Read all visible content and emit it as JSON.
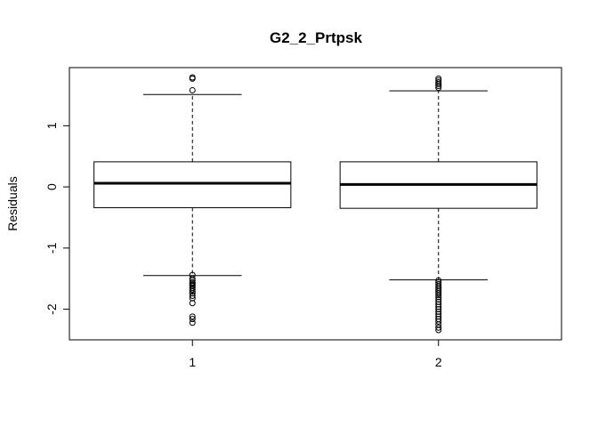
{
  "chart_data": {
    "type": "boxplot",
    "title": "G2_2_Prtpsk",
    "xlabel": "",
    "ylabel": "Residuals",
    "categories": [
      "1",
      "2"
    ],
    "ylim": [
      -2.5,
      1.95
    ],
    "yticks": [
      -2,
      -1,
      0,
      1
    ],
    "ytick_labels": [
      "-2",
      "-1",
      "0",
      "1"
    ],
    "grid": false,
    "boxes": [
      {
        "category": "1",
        "whisker_low": -1.45,
        "q1": -0.34,
        "median": 0.06,
        "q3": 0.41,
        "whisker_high": 1.51,
        "outliers": [
          1.79,
          1.77,
          1.58,
          -1.44,
          -1.5,
          -1.53,
          -1.56,
          -1.58,
          -1.6,
          -1.62,
          -1.65,
          -1.68,
          -1.71,
          -1.74,
          -1.78,
          -1.82,
          -1.9,
          -2.12,
          -2.16,
          -2.22
        ]
      },
      {
        "category": "2",
        "whisker_low": -1.52,
        "q1": -0.35,
        "median": 0.04,
        "q3": 0.41,
        "whisker_high": 1.57,
        "outliers": [
          1.77,
          1.74,
          1.71,
          1.68,
          1.65,
          1.62,
          -1.53,
          -1.56,
          -1.59,
          -1.62,
          -1.65,
          -1.68,
          -1.71,
          -1.74,
          -1.77,
          -1.8,
          -1.84,
          -1.88,
          -1.92,
          -1.96,
          -2.0,
          -2.04,
          -2.08,
          -2.12,
          -2.16,
          -2.2,
          -2.25,
          -2.3,
          -2.34
        ]
      }
    ]
  }
}
